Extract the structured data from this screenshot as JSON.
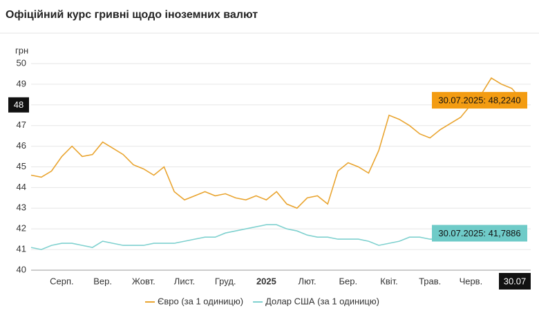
{
  "chart_data": {
    "type": "line",
    "title": "Офіційний курс гривні щодо іноземних валют",
    "y_label": "грн",
    "categories": [
      null,
      null,
      null,
      "Серп.",
      null,
      null,
      null,
      "Вер.",
      null,
      null,
      null,
      "Жовт.",
      null,
      null,
      null,
      "Лист.",
      null,
      null,
      null,
      "Груд.",
      null,
      null,
      null,
      "2025",
      null,
      null,
      null,
      "Лют.",
      null,
      null,
      null,
      "Бер.",
      null,
      null,
      null,
      "Квіт.",
      null,
      null,
      null,
      "Трав.",
      null,
      null,
      null,
      "Черв.",
      null,
      null,
      null,
      null,
      "30.07"
    ],
    "ylim": [
      40,
      50
    ],
    "yticks": [
      40,
      41,
      42,
      43,
      44,
      45,
      46,
      47,
      48,
      49,
      50
    ],
    "highlighted_ytick": 48,
    "grid": true,
    "series": [
      {
        "name": "Євро (за 1 одиницю)",
        "color": "#e9a42f",
        "label_color": "#f39c12",
        "end_label": "30.07.2025: 48,2240",
        "values": [
          44.6,
          44.5,
          44.8,
          45.5,
          46.0,
          45.5,
          45.6,
          46.2,
          45.9,
          45.6,
          45.1,
          44.9,
          44.6,
          45.0,
          43.8,
          43.4,
          43.6,
          43.8,
          43.6,
          43.7,
          43.5,
          43.4,
          43.6,
          43.4,
          43.8,
          43.2,
          43.0,
          43.5,
          43.6,
          43.2,
          44.8,
          45.2,
          45.0,
          44.7,
          45.8,
          47.5,
          47.3,
          47.0,
          46.6,
          46.4,
          46.8,
          47.1,
          47.4,
          48.0,
          48.5,
          49.3,
          49.0,
          48.8,
          48.224
        ]
      },
      {
        "name": "Долар США (за 1 одиницю)",
        "color": "#7fd1cf",
        "label_color": "#6fcbc8",
        "end_label": "30.07.2025: 41,7886",
        "values": [
          41.1,
          41.0,
          41.2,
          41.3,
          41.3,
          41.2,
          41.1,
          41.4,
          41.3,
          41.2,
          41.2,
          41.2,
          41.3,
          41.3,
          41.3,
          41.4,
          41.5,
          41.6,
          41.6,
          41.8,
          41.9,
          42.0,
          42.1,
          42.2,
          42.2,
          42.0,
          41.9,
          41.7,
          41.6,
          41.6,
          41.5,
          41.5,
          41.5,
          41.4,
          41.2,
          41.3,
          41.4,
          41.6,
          41.6,
          41.5,
          41.5,
          41.5,
          41.5,
          41.5,
          41.6,
          41.6,
          41.5,
          41.6,
          41.7886
        ]
      }
    ]
  }
}
